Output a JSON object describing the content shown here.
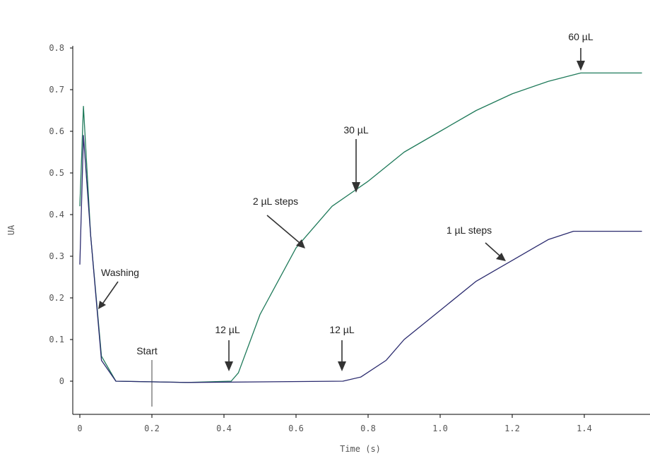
{
  "chart_data": {
    "type": "line",
    "xlabel": "Time (s)",
    "ylabel": "UA",
    "xlim": [
      -0.02,
      1.56
    ],
    "ylim": [
      -0.08,
      0.8
    ],
    "x_ticks": [
      0,
      0.2,
      0.4,
      0.6,
      0.8,
      1.0,
      1.2,
      1.4
    ],
    "x_tick_labels": [
      "0",
      "0.2",
      "0.4",
      "0.6",
      "0.8",
      "1.0",
      "1.2",
      "1.4"
    ],
    "y_ticks": [
      0,
      0.1,
      0.2,
      0.3,
      0.4,
      0.5,
      0.6,
      0.7,
      0.8
    ],
    "y_tick_labels": [
      "0",
      "0.1",
      "0.2",
      "0.3",
      "0.4",
      "0.5",
      "0.6",
      "0.7",
      "0.8"
    ],
    "grid": false,
    "series": [
      {
        "color": "#1f7a5a",
        "points": [
          [
            0,
            0.42
          ],
          [
            0.01,
            0.66
          ],
          [
            0.03,
            0.35
          ],
          [
            0.06,
            0.06
          ],
          [
            0.1,
            0.0
          ],
          [
            0.3,
            -0.003
          ],
          [
            0.42,
            0.0
          ],
          [
            0.44,
            0.02
          ],
          [
            0.5,
            0.16
          ],
          [
            0.6,
            0.32
          ],
          [
            0.7,
            0.42
          ],
          [
            0.8,
            0.48
          ],
          [
            0.9,
            0.55
          ],
          [
            1.0,
            0.6
          ],
          [
            1.1,
            0.65
          ],
          [
            1.2,
            0.69
          ],
          [
            1.3,
            0.72
          ],
          [
            1.39,
            0.74
          ],
          [
            1.56,
            0.74
          ]
        ]
      },
      {
        "color": "#2a2a6e",
        "points": [
          [
            0,
            0.28
          ],
          [
            0.01,
            0.59
          ],
          [
            0.03,
            0.35
          ],
          [
            0.06,
            0.05
          ],
          [
            0.1,
            0.0
          ],
          [
            0.3,
            -0.003
          ],
          [
            0.73,
            0.0
          ],
          [
            0.78,
            0.01
          ],
          [
            0.85,
            0.05
          ],
          [
            0.9,
            0.1
          ],
          [
            1.0,
            0.17
          ],
          [
            1.1,
            0.24
          ],
          [
            1.2,
            0.29
          ],
          [
            1.3,
            0.34
          ],
          [
            1.37,
            0.36
          ],
          [
            1.56,
            0.36
          ]
        ]
      }
    ],
    "annotations": [
      {
        "text": "Washing",
        "x": 0.06,
        "y": 0.25
      },
      {
        "text": "Start",
        "x": 0.2,
        "y": 0.07
      },
      {
        "text": "12 µL",
        "x": 0.43,
        "y": 0.11
      },
      {
        "text": "2 µL steps",
        "x": 0.56,
        "y": 0.43
      },
      {
        "text": "30 µL",
        "x": 0.78,
        "y": 0.58
      },
      {
        "text": "12 µL",
        "x": 0.74,
        "y": 0.11
      },
      {
        "text": "1 µL steps",
        "x": 1.18,
        "y": 0.35
      },
      {
        "text": "60 µL",
        "x": 1.39,
        "y": 0.82
      }
    ]
  }
}
